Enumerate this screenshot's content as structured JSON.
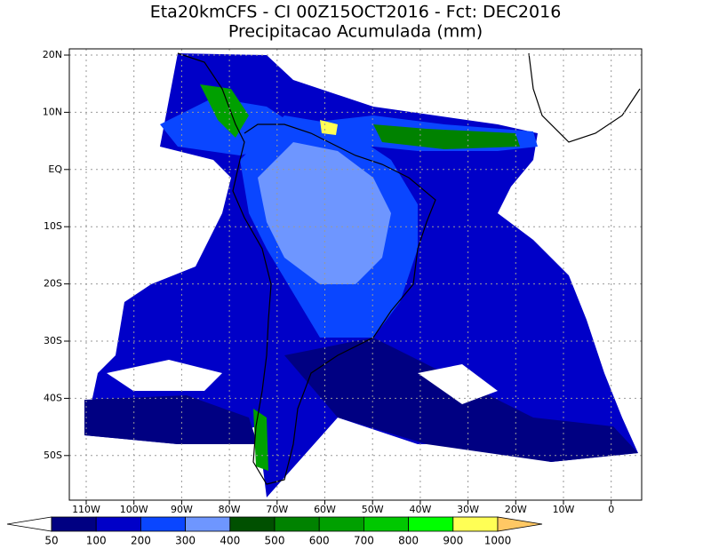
{
  "header": {
    "title": "Eta20kmCFS - CI 00Z15OCT2016 - Fct: DEC2016",
    "subtitle": "Precipitacao Acumulada (mm)"
  },
  "map": {
    "lat_labels": [
      "20N",
      "10N",
      "EQ",
      "10S",
      "20S",
      "30S",
      "40S",
      "50S"
    ],
    "lon_labels": [
      "110W",
      "100W",
      "90W",
      "80W",
      "70W",
      "60W",
      "50W",
      "40W",
      "30W",
      "20W",
      "10W",
      "0"
    ]
  },
  "colorbar": {
    "levels": [
      50,
      100,
      200,
      300,
      400,
      500,
      600,
      700,
      800,
      900,
      1000
    ],
    "colors": [
      "#ffffff",
      "#000082",
      "#0000c8",
      "#0a46ff",
      "#6e96ff",
      "#005000",
      "#008200",
      "#00a000",
      "#00c800",
      "#00ff00",
      "#ffff55",
      "#ffc864"
    ]
  }
}
